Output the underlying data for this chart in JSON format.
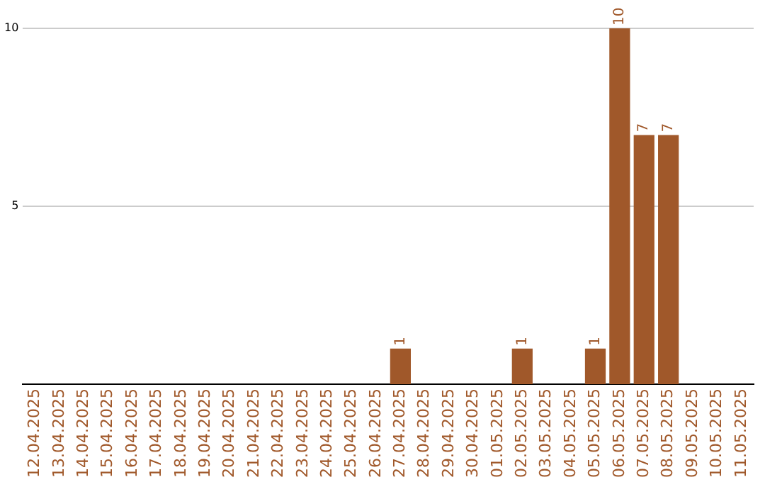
{
  "chart_data": {
    "type": "bar",
    "categories": [
      "12.04.2025",
      "13.04.2025",
      "14.04.2025",
      "15.04.2025",
      "16.04.2025",
      "17.04.2025",
      "18.04.2025",
      "19.04.2025",
      "20.04.2025",
      "21.04.2025",
      "22.04.2025",
      "23.04.2025",
      "24.04.2025",
      "25.04.2025",
      "26.04.2025",
      "27.04.2025",
      "28.04.2025",
      "29.04.2025",
      "30.04.2025",
      "01.05.2025",
      "02.05.2025",
      "03.05.2025",
      "04.05.2025",
      "05.05.2025",
      "06.05.2025",
      "07.05.2025",
      "08.05.2025",
      "09.05.2025",
      "10.05.2025",
      "11.05.2025"
    ],
    "values": [
      0,
      0,
      0,
      0,
      0,
      0,
      0,
      0,
      0,
      0,
      0,
      0,
      0,
      0,
      0,
      1,
      0,
      0,
      0,
      0,
      1,
      0,
      0,
      1,
      10,
      7,
      7,
      0,
      0,
      0
    ],
    "color": "#a0582a",
    "ylim": [
      0,
      10
    ],
    "yticks": [
      5,
      10
    ],
    "grid": "y",
    "legend": false,
    "value_labels": [
      null,
      null,
      null,
      null,
      null,
      null,
      null,
      null,
      null,
      null,
      null,
      null,
      null,
      null,
      null,
      "1",
      null,
      null,
      null,
      null,
      "1",
      null,
      null,
      "1",
      "10",
      "7",
      "7",
      null,
      null,
      null
    ]
  }
}
